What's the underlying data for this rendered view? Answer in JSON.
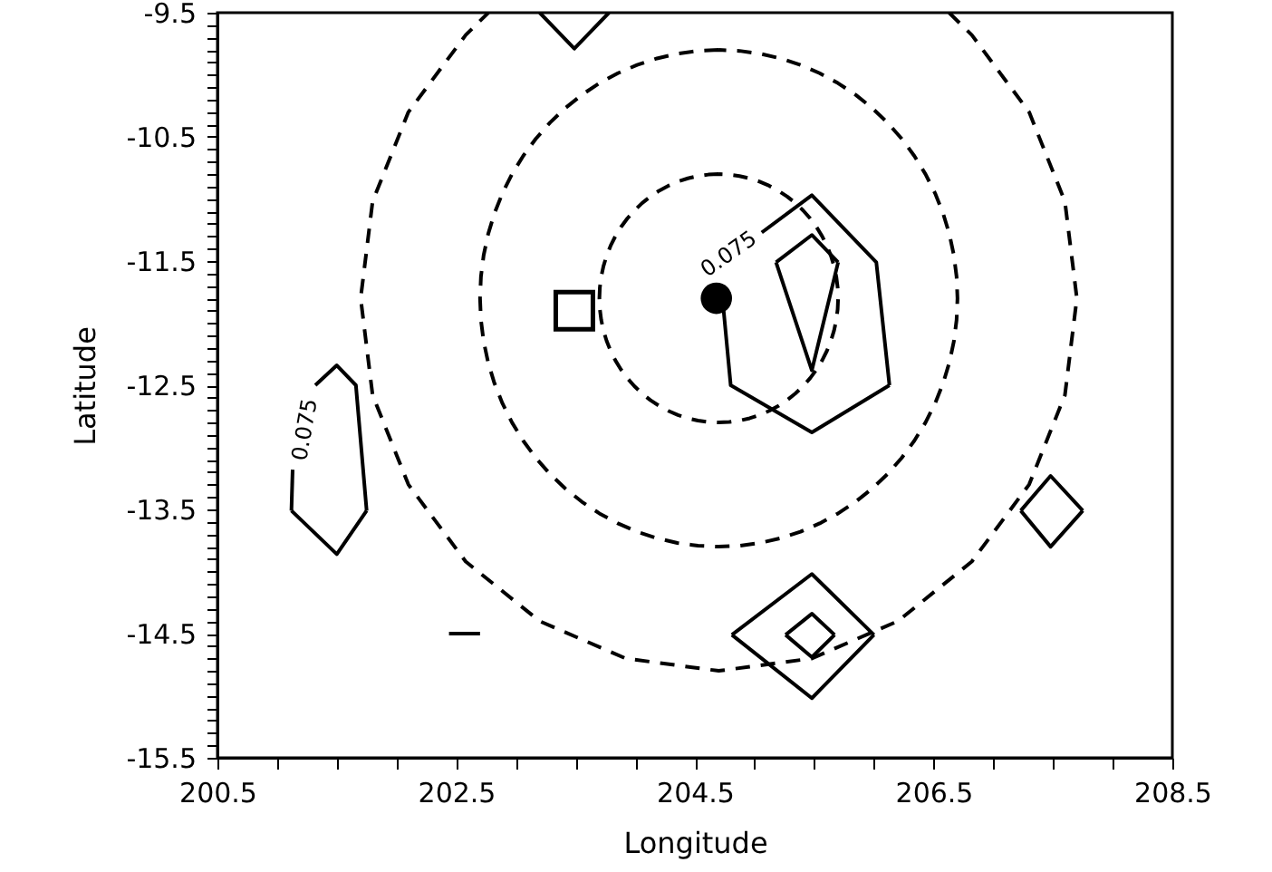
{
  "chart_data": {
    "type": "line",
    "xlabel": "Longitude",
    "ylabel": "Latitude",
    "xlim": [
      200.5,
      208.5
    ],
    "ylim": [
      -15.5,
      -9.5
    ],
    "xticks": [
      200.5,
      {
        "value": 201,
        "label": null
      },
      {
        "value": 201.5,
        "label": null
      },
      {
        "value": 202,
        "label": null
      },
      202.5,
      {
        "value": 203,
        "label": null
      },
      {
        "value": 203.5,
        "label": null
      },
      {
        "value": 204,
        "label": null
      },
      204.5,
      {
        "value": 205,
        "label": null
      },
      {
        "value": 205.5,
        "label": null
      },
      {
        "value": 206,
        "label": null
      },
      206.5,
      {
        "value": 207,
        "label": null
      },
      {
        "value": 207.5,
        "label": null
      },
      {
        "value": 208,
        "label": null
      },
      208.5
    ],
    "yticks": [
      -15.5,
      {
        "value": -15.4,
        "label": null
      },
      {
        "value": -15.3,
        "label": null
      },
      {
        "value": -15.2,
        "label": null
      },
      {
        "value": -15.1,
        "label": null
      },
      {
        "value": -15,
        "label": null
      },
      {
        "value": -14.9,
        "label": null
      },
      {
        "value": -14.8,
        "label": null
      },
      {
        "value": -14.7,
        "label": null
      },
      {
        "value": -14.6,
        "label": null
      },
      -14.5,
      {
        "value": -14.4,
        "label": null
      },
      {
        "value": -14.3,
        "label": null
      },
      {
        "value": -14.2,
        "label": null
      },
      {
        "value": -14.1,
        "label": null
      },
      {
        "value": -14,
        "label": null
      },
      {
        "value": -13.9,
        "label": null
      },
      {
        "value": -13.8,
        "label": null
      },
      {
        "value": -13.7,
        "label": null
      },
      {
        "value": -13.6,
        "label": null
      },
      -13.5,
      {
        "value": -13.4,
        "label": null
      },
      {
        "value": -13.3,
        "label": null
      },
      {
        "value": -13.2,
        "label": null
      },
      {
        "value": -13.1,
        "label": null
      },
      {
        "value": -13,
        "label": null
      },
      {
        "value": -12.9,
        "label": null
      },
      {
        "value": -12.8,
        "label": null
      },
      {
        "value": -12.7,
        "label": null
      },
      {
        "value": -12.6,
        "label": null
      },
      -12.5,
      {
        "value": -12.4,
        "label": null
      },
      {
        "value": -12.3,
        "label": null
      },
      {
        "value": -12.2,
        "label": null
      },
      {
        "value": -12.1,
        "label": null
      },
      {
        "value": -12,
        "label": null
      },
      {
        "value": -11.9,
        "label": null
      },
      {
        "value": -11.8,
        "label": null
      },
      {
        "value": -11.7,
        "label": null
      },
      {
        "value": -11.6,
        "label": null
      },
      -11.5,
      {
        "value": -11.4,
        "label": null
      },
      {
        "value": -11.3,
        "label": null
      },
      {
        "value": -11.2,
        "label": null
      },
      {
        "value": -11.1,
        "label": null
      },
      {
        "value": -11,
        "label": null
      },
      {
        "value": -10.9,
        "label": null
      },
      {
        "value": -10.8,
        "label": null
      },
      {
        "value": -10.7,
        "label": null
      },
      {
        "value": -10.6,
        "label": null
      },
      -10.5,
      {
        "value": -10.4,
        "label": null
      },
      {
        "value": -10.3,
        "label": null
      },
      {
        "value": -10.2,
        "label": null
      },
      {
        "value": -10.1,
        "label": null
      },
      {
        "value": -10,
        "label": null
      },
      {
        "value": -9.9,
        "label": null
      },
      {
        "value": -9.8,
        "label": null
      },
      {
        "value": -9.7,
        "label": null
      },
      {
        "value": -9.6,
        "label": null
      },
      -9.5
    ],
    "series": [
      {
        "line_style": "dashed",
        "color": "#000000",
        "x": [
          206.63,
          206.82,
          207.3,
          207.6,
          207.7,
          207.6,
          207.3,
          206.82,
          206.2,
          205.48,
          204.7,
          203.92,
          203.2,
          202.58,
          202.1,
          201.8,
          201.7,
          201.8,
          202.1,
          202.58,
          202.77
        ],
        "values": [
          -9.5,
          -9.68,
          -10.3,
          -11.02,
          -11.8,
          -12.58,
          -13.3,
          -13.92,
          -14.4,
          -14.7,
          -14.8,
          -14.7,
          -14.4,
          -13.92,
          -13.3,
          -12.58,
          -11.8,
          -11.02,
          -10.3,
          -9.68,
          -9.5
        ]
      },
      {
        "line_style": "solid",
        "color": "#000000",
        "x": [
          205.06,
          205.48,
          206.02,
          206.13
        ],
        "values": [
          -11.27,
          -10.97,
          -11.51,
          -12.5
        ]
      },
      {
        "line_style": "solid",
        "color": "#000000",
        "x": [
          204.74,
          204.8,
          205.48,
          206.13
        ],
        "values": [
          -11.89,
          -12.5,
          -12.88,
          -12.5
        ]
      },
      {
        "line_style": "solid",
        "color": "#000000",
        "x": [
          205.18,
          205.48,
          205.7
        ],
        "values": [
          -11.51,
          -11.29,
          -11.51
        ]
      },
      {
        "line_style": "solid",
        "color": "#000000",
        "x": [
          205.18,
          205.48,
          205.7
        ],
        "values": [
          -11.51,
          -12.38,
          -11.51
        ]
      },
      {
        "line_style": "solid",
        "color": "#000000",
        "x": [
          201.32,
          201.5,
          201.66,
          201.75
        ],
        "values": [
          -12.5,
          -12.34,
          -12.5,
          -13.51
        ]
      },
      {
        "line_style": "solid",
        "color": "#000000",
        "x": [
          201.12,
          201.5,
          201.75
        ],
        "values": [
          -13.51,
          -13.86,
          -13.51
        ]
      },
      {
        "line_style": "solid",
        "color": "#000000",
        "x": [
          201.12,
          201.13
        ],
        "values": [
          -13.51,
          -13.18
        ]
      },
      {
        "line_style": "solid",
        "color": "#000000",
        "x": [
          203.2,
          203.49,
          203.78
        ],
        "values": [
          -9.5,
          -9.79,
          -9.5
        ]
      },
      {
        "line_style": "solid",
        "color": "#000000",
        "x": [
          202.44,
          202.7
        ],
        "values": [
          -14.5,
          -14.5
        ]
      },
      {
        "line_style": "solid",
        "color": "#000000",
        "x": [
          204.81,
          205.48,
          206.0
        ],
        "values": [
          -14.51,
          -14.02,
          -14.51
        ]
      },
      {
        "line_style": "solid",
        "color": "#000000",
        "x": [
          204.81,
          205.48,
          206.0
        ],
        "values": [
          -14.51,
          -15.02,
          -14.51
        ]
      },
      {
        "line_style": "solid",
        "color": "#000000",
        "x": [
          205.26,
          205.48,
          205.67
        ],
        "values": [
          -14.51,
          -14.34,
          -14.51
        ]
      },
      {
        "line_style": "solid",
        "color": "#000000",
        "x": [
          205.26,
          205.48,
          205.67
        ],
        "values": [
          -14.51,
          -14.69,
          -14.51
        ]
      },
      {
        "line_style": "solid",
        "color": "#000000",
        "x": [
          207.23,
          207.48,
          207.75
        ],
        "values": [
          -13.51,
          -13.23,
          -13.51
        ]
      },
      {
        "line_style": "solid",
        "color": "#000000",
        "x": [
          207.23,
          207.48,
          207.75
        ],
        "values": [
          -13.51,
          -13.8,
          -13.51
        ]
      },
      {
        "type": "scatter",
        "marker": "circle",
        "color": "#000000",
        "x": [
          204.68
        ],
        "values": [
          -11.8
        ]
      },
      {
        "type": "scatter",
        "marker": "square",
        "color": "#000000",
        "x": [
          203.49
        ],
        "values": [
          -11.9
        ]
      }
    ],
    "annotations": [
      "0.075",
      "0.075"
    ]
  }
}
